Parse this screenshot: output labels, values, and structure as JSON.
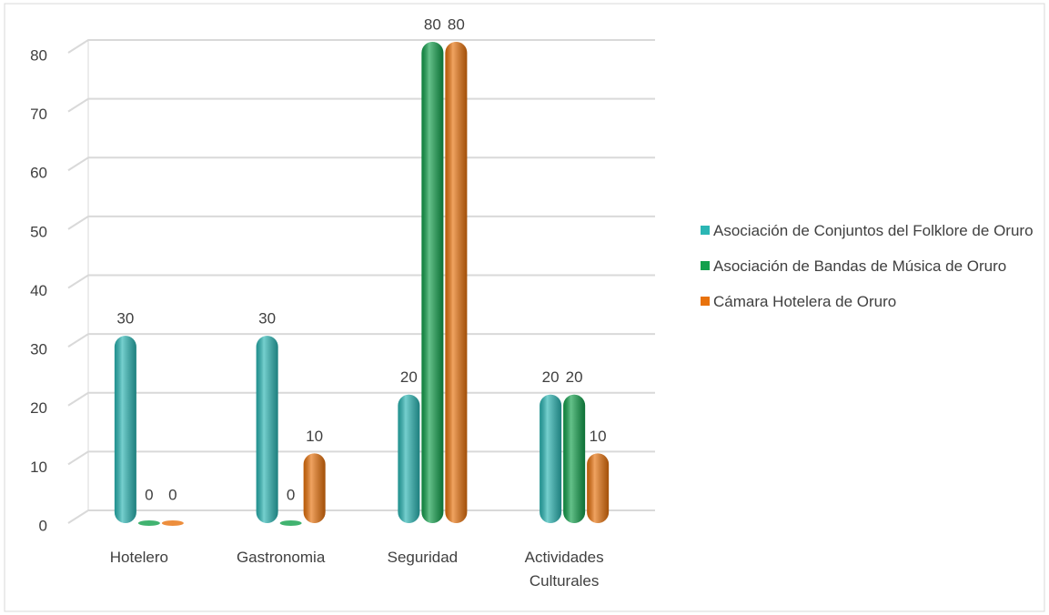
{
  "chart_data": {
    "type": "bar",
    "categories": [
      "Hotelero",
      "Gastronomia",
      "Seguridad",
      "Actividades Culturales"
    ],
    "series": [
      {
        "name": "Asociación de Conjuntos del Folklore de Oruro",
        "color": "#2bb6b4",
        "values": [
          30,
          30,
          20,
          20
        ]
      },
      {
        "name": "Asociación de Bandas de Música de Oruro",
        "color": "#12a04c",
        "values": [
          0,
          0,
          80,
          20
        ]
      },
      {
        "name": "Cámara Hotelera de Oruro",
        "color": "#e8720c",
        "values": [
          0,
          10,
          80,
          10
        ]
      }
    ],
    "ylim": [
      0,
      80
    ],
    "yticks": [
      0,
      10,
      20,
      30,
      40,
      50,
      60,
      70,
      80
    ],
    "grid": true,
    "legend": "right"
  }
}
